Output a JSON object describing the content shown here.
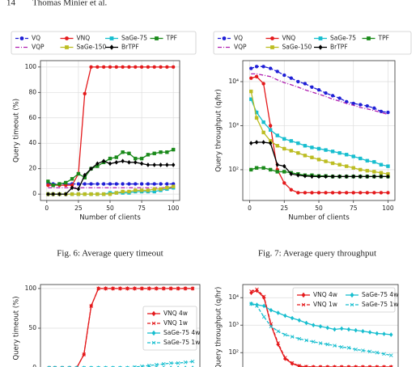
{
  "header": {
    "page": "14",
    "authors": "Thomas Minier et al."
  },
  "chart_data": [
    {
      "type": "line",
      "caption": "Fig. 6: Average query timeout",
      "xlabel": "Number of clients",
      "ylabel": "Query timeout (%)",
      "x": [
        1,
        5,
        10,
        15,
        20,
        25,
        30,
        35,
        40,
        45,
        50,
        55,
        60,
        65,
        70,
        75,
        80,
        85,
        90,
        95,
        100
      ],
      "xlim": [
        -5,
        105
      ],
      "xticks": [
        0,
        25,
        50,
        75,
        100
      ],
      "ylim": [
        -5,
        105
      ],
      "yticks": [
        0,
        20,
        40,
        60,
        80,
        100
      ],
      "yscale": "linear",
      "grid": true,
      "legend": "above",
      "legend_columns": 4,
      "series": [
        {
          "name": "VQ",
          "color": "#1f1fd6",
          "linestyle": "dashed",
          "marker": "circle",
          "values": [
            8,
            8,
            8,
            8,
            8,
            8,
            8,
            8,
            8,
            8,
            8,
            8,
            8,
            8,
            8,
            8,
            8,
            8,
            8,
            8,
            8
          ]
        },
        {
          "name": "VNQ",
          "color": "#e41a1c",
          "linestyle": "solid",
          "marker": "circle",
          "values": [
            7,
            7,
            7,
            7,
            7,
            16,
            79,
            100,
            100,
            100,
            100,
            100,
            100,
            100,
            100,
            100,
            100,
            100,
            100,
            100,
            100
          ]
        },
        {
          "name": "SaGe-75",
          "color": "#17becf",
          "linestyle": "solid",
          "marker": "square",
          "values": [
            0,
            0,
            0,
            0,
            0,
            0,
            0,
            0,
            0,
            0,
            1,
            1,
            1,
            1,
            2,
            2,
            2,
            2,
            3,
            4,
            5
          ]
        },
        {
          "name": "TPF",
          "color": "#1a8a1a",
          "linestyle": "solid",
          "marker": "square",
          "values": [
            10,
            7,
            8,
            9,
            12,
            16,
            13,
            20,
            22,
            25,
            28,
            29,
            33,
            32,
            28,
            28,
            31,
            32,
            33,
            33,
            35
          ]
        },
        {
          "name": "VQP",
          "color": "#b01fb0",
          "linestyle": "dashdot",
          "marker": "none",
          "values": [
            5,
            5,
            5,
            5,
            5,
            5,
            5,
            5,
            5,
            5,
            5,
            5,
            5,
            5,
            5,
            5,
            5,
            5,
            5,
            5,
            5
          ]
        },
        {
          "name": "SaGe-150",
          "color": "#bcbd22",
          "linestyle": "solid",
          "marker": "square",
          "values": [
            0,
            0,
            0,
            0,
            0,
            0,
            0,
            0,
            0,
            0,
            0,
            1,
            2,
            2,
            3,
            3,
            3,
            4,
            4,
            5,
            6
          ]
        },
        {
          "name": "BrTPF",
          "color": "#000000",
          "linestyle": "solid",
          "marker": "diamond",
          "values": [
            0,
            0,
            0,
            0,
            5,
            4,
            15,
            20,
            24,
            26,
            24,
            25,
            26,
            25,
            25,
            24,
            23,
            23,
            23,
            23,
            23
          ]
        }
      ]
    },
    {
      "type": "line",
      "caption": "Fig. 7: Average query throughput",
      "xlabel": "Number of clients",
      "ylabel": "Query throughput (q/hr)",
      "x": [
        1,
        5,
        10,
        15,
        20,
        25,
        30,
        35,
        40,
        45,
        50,
        55,
        60,
        65,
        70,
        75,
        80,
        85,
        90,
        95,
        100
      ],
      "xlim": [
        -5,
        105
      ],
      "xticks": [
        0,
        25,
        50,
        75,
        100
      ],
      "ylim": [
        20,
        30000
      ],
      "yticks": [
        {
          "value": 100,
          "label": "10²"
        },
        {
          "value": 1000,
          "label": "10³"
        },
        {
          "value": 10000,
          "label": "10⁴"
        }
      ],
      "yscale": "log",
      "grid": true,
      "legend": "above",
      "legend_columns": 4,
      "series": [
        {
          "name": "VQ",
          "color": "#1f1fd6",
          "linestyle": "dashed",
          "marker": "circle",
          "values": [
            20000,
            22000,
            22000,
            20000,
            17000,
            14000,
            12000,
            10000,
            9000,
            7500,
            6500,
            5500,
            4800,
            4200,
            3500,
            3200,
            3000,
            2800,
            2500,
            2100,
            2000
          ]
        },
        {
          "name": "VNQ",
          "color": "#e41a1c",
          "linestyle": "solid",
          "marker": "circle",
          "values": [
            12000,
            13000,
            9000,
            1000,
            100,
            50,
            35,
            30,
            30,
            30,
            30,
            30,
            30,
            30,
            30,
            30,
            30,
            30,
            30,
            30,
            30
          ]
        },
        {
          "name": "SaGe-75",
          "color": "#17becf",
          "linestyle": "solid",
          "marker": "square",
          "values": [
            4000,
            2000,
            1200,
            800,
            600,
            500,
            450,
            400,
            350,
            320,
            300,
            280,
            260,
            240,
            220,
            200,
            180,
            160,
            150,
            130,
            120
          ]
        },
        {
          "name": "TPF",
          "color": "#1a8a1a",
          "linestyle": "solid",
          "marker": "square",
          "values": [
            100,
            110,
            110,
            100,
            90,
            90,
            85,
            80,
            75,
            75,
            72,
            72,
            70,
            70,
            70,
            70,
            70,
            70,
            70,
            70,
            70
          ]
        },
        {
          "name": "VQP",
          "color": "#b01fb0",
          "linestyle": "dashdot",
          "marker": "none",
          "values": [
            15000,
            15000,
            14000,
            13000,
            11000,
            9500,
            8500,
            7500,
            6500,
            5800,
            5200,
            4600,
            4000,
            3600,
            3200,
            2900,
            2600,
            2400,
            2200,
            2000,
            1800
          ]
        },
        {
          "name": "SaGe-150",
          "color": "#bcbd22",
          "linestyle": "solid",
          "marker": "square",
          "values": [
            6000,
            1500,
            700,
            450,
            350,
            300,
            270,
            240,
            210,
            190,
            170,
            155,
            140,
            130,
            120,
            110,
            100,
            95,
            90,
            85,
            80
          ]
        },
        {
          "name": "BrTPF",
          "color": "#000000",
          "linestyle": "solid",
          "marker": "diamond",
          "values": [
            400,
            420,
            420,
            400,
            130,
            120,
            80,
            75,
            72,
            70,
            70,
            70,
            70,
            70,
            70,
            70,
            70,
            70,
            70,
            70,
            70
          ]
        }
      ]
    },
    {
      "type": "line",
      "ylabel": "Query timeout (%)",
      "x": [
        1,
        5,
        10,
        15,
        20,
        25,
        30,
        35,
        40,
        45,
        50,
        55,
        60,
        65,
        70,
        75,
        80,
        85,
        90,
        95,
        100
      ],
      "xlim": [
        -5,
        105
      ],
      "ylim": [
        -5,
        105
      ],
      "yticks": [
        0,
        50,
        100
      ],
      "yscale": "linear",
      "grid": true,
      "legend": "center right",
      "legend_columns": 1,
      "series": [
        {
          "name": "VNQ 4w",
          "color": "#e41a1c",
          "linestyle": "solid",
          "marker": "diamond",
          "values": [
            0,
            0,
            0,
            0,
            0,
            17,
            78,
            100,
            100,
            100,
            100,
            100,
            100,
            100,
            100,
            100,
            100,
            100,
            100,
            100,
            100
          ]
        },
        {
          "name": "VNQ 1w",
          "color": "#e41a1c",
          "linestyle": "dashed",
          "marker": "x",
          "values": [
            0,
            0,
            0,
            0,
            0,
            17,
            78,
            100,
            100,
            100,
            100,
            100,
            100,
            100,
            100,
            100,
            100,
            100,
            100,
            100,
            100
          ]
        },
        {
          "name": "SaGe-75 4w",
          "color": "#17becf",
          "linestyle": "solid",
          "marker": "diamond",
          "values": [
            0,
            0,
            0,
            0,
            0,
            0,
            0,
            0,
            0,
            0,
            0,
            0,
            0,
            0,
            0,
            0,
            0,
            0,
            0,
            0,
            0
          ]
        },
        {
          "name": "SaGe-75 1w",
          "color": "#17becf",
          "linestyle": "dashed",
          "marker": "x",
          "values": [
            0,
            0,
            0,
            0,
            0,
            0,
            0,
            0,
            0,
            0,
            0,
            0,
            1,
            2,
            3,
            4,
            5,
            6,
            6,
            7,
            8
          ]
        }
      ]
    },
    {
      "type": "line",
      "ylabel": "Query throughput (q/hr)",
      "x": [
        1,
        5,
        10,
        15,
        20,
        25,
        30,
        35,
        40,
        45,
        50,
        55,
        60,
        65,
        70,
        75,
        80,
        85,
        90,
        95,
        100
      ],
      "xlim": [
        -5,
        105
      ],
      "ylim": [
        20,
        30000
      ],
      "yticks": [
        {
          "value": 100,
          "label": "10²"
        },
        {
          "value": 1000,
          "label": "10³"
        },
        {
          "value": 10000,
          "label": "10⁴"
        }
      ],
      "yscale": "log",
      "grid": true,
      "legend": "upper right",
      "legend_columns": 2,
      "series": [
        {
          "name": "VNQ 4w",
          "color": "#e41a1c",
          "linestyle": "solid",
          "marker": "diamond",
          "values": [
            15000,
            18000,
            10000,
            1000,
            200,
            60,
            40,
            32,
            30,
            30,
            30,
            30,
            30,
            30,
            30,
            30,
            30,
            30,
            30,
            30,
            30
          ]
        },
        {
          "name": "SaGe-75 4w",
          "color": "#17becf",
          "linestyle": "solid",
          "marker": "diamond",
          "values": [
            6000,
            5500,
            5000,
            3500,
            2800,
            2200,
            1800,
            1500,
            1200,
            1000,
            900,
            800,
            700,
            750,
            700,
            650,
            600,
            550,
            500,
            480,
            450
          ]
        },
        {
          "name": "VNQ 1w",
          "color": "#e41a1c",
          "linestyle": "dashed",
          "marker": "x",
          "values": [
            17000,
            20000,
            11000,
            1100,
            220,
            65,
            42,
            33,
            31,
            30,
            30,
            30,
            30,
            30,
            30,
            30,
            30,
            30,
            30,
            30,
            30
          ]
        },
        {
          "name": "SaGe-75 1w",
          "color": "#17becf",
          "linestyle": "dashed",
          "marker": "x",
          "values": [
            6000,
            5000,
            2000,
            900,
            600,
            450,
            380,
            320,
            280,
            250,
            220,
            200,
            180,
            160,
            150,
            130,
            120,
            110,
            100,
            90,
            80
          ]
        }
      ]
    }
  ]
}
